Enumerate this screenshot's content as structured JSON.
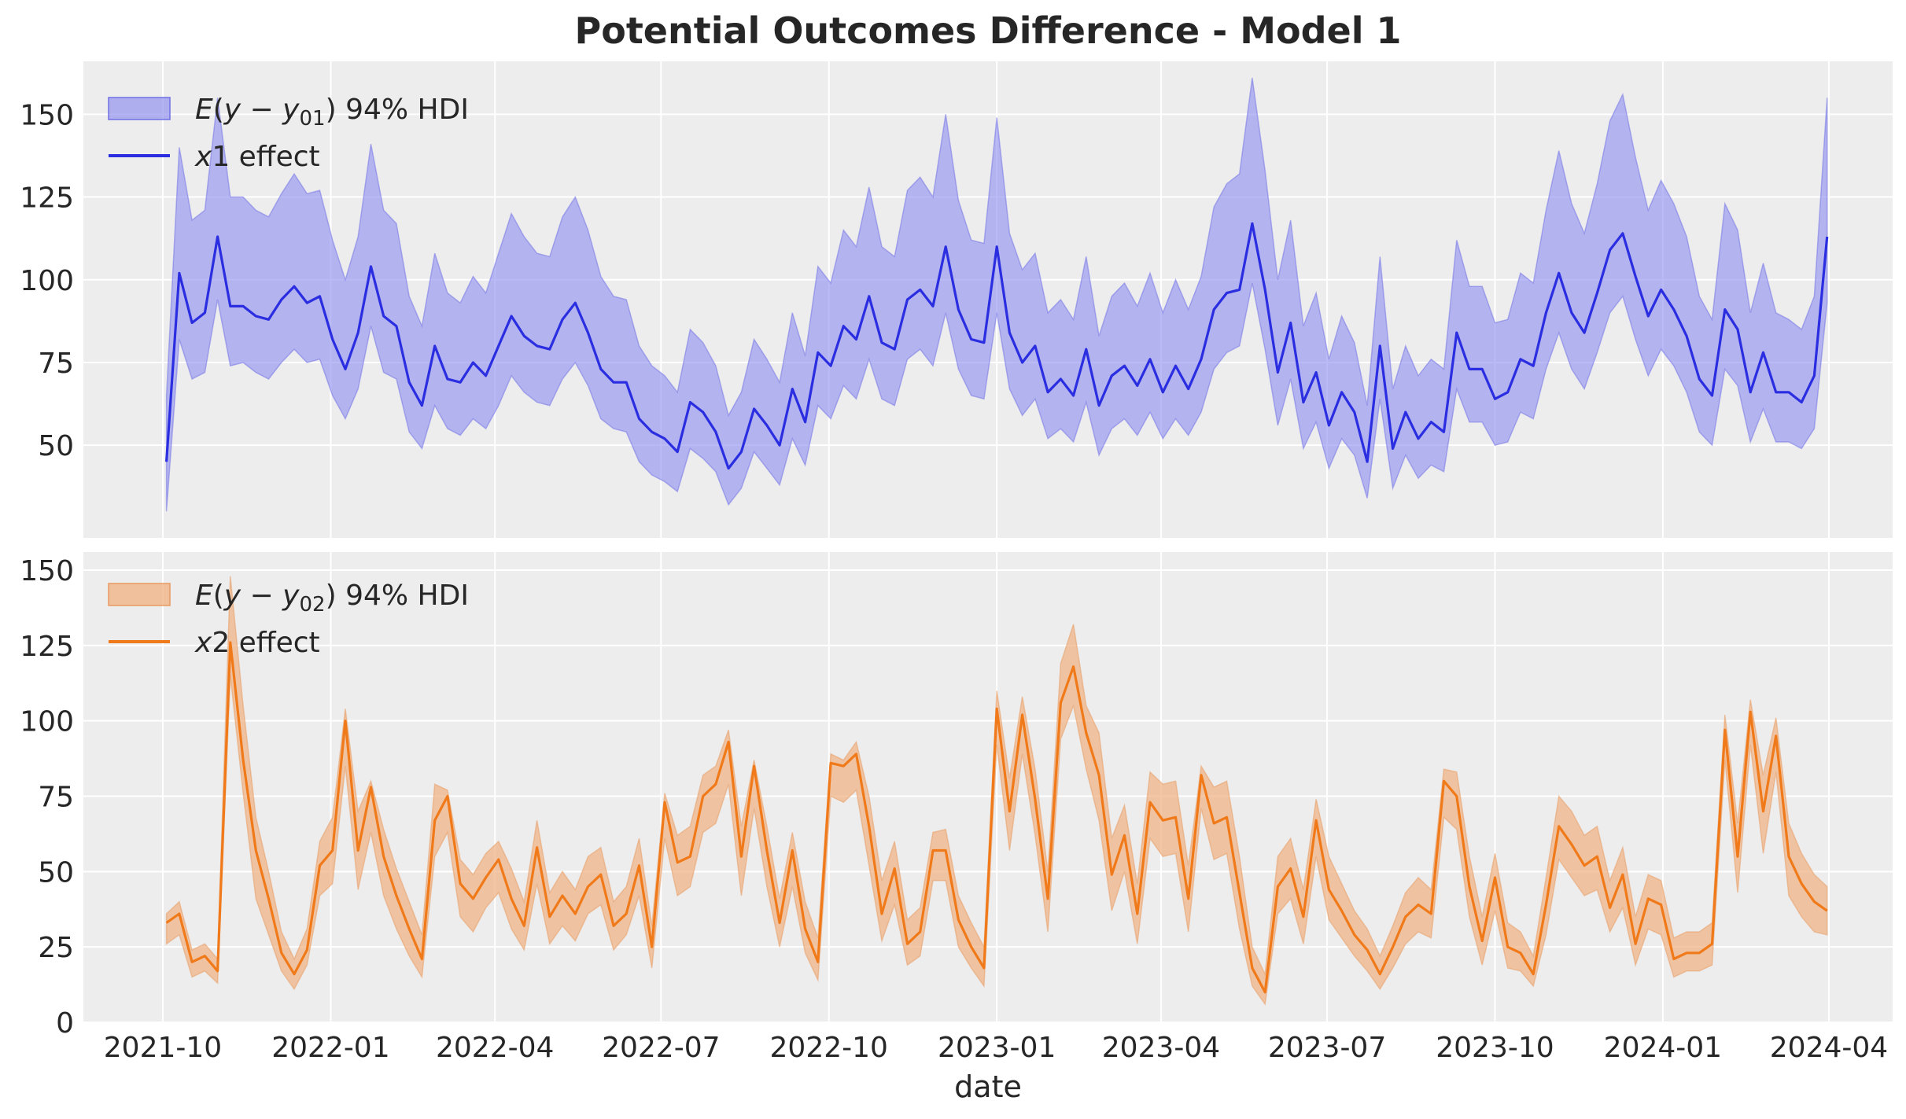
{
  "figure": {
    "title": "Potential Outcomes Difference - Model 1"
  },
  "chart_data": [
    {
      "type": "area",
      "title": "Potential Outcomes Difference - Model 1",
      "xlabel": "",
      "ylabel": "",
      "ylim": [
        22,
        166
      ],
      "yticks": [
        50,
        75,
        100,
        125,
        150
      ],
      "grid": true,
      "legend_position": "top-left",
      "colors": {
        "line": "#2a2ee0",
        "band": "#8c8cf0",
        "band_edge": "#7070e6"
      },
      "x": [
        "2021-10-03",
        "2021-10-10",
        "2021-10-17",
        "2021-10-24",
        "2021-10-31",
        "2021-11-07",
        "2021-11-14",
        "2021-11-21",
        "2021-11-28",
        "2021-12-05",
        "2021-12-12",
        "2021-12-19",
        "2021-12-26",
        "2022-01-02",
        "2022-01-09",
        "2022-01-16",
        "2022-01-23",
        "2022-01-30",
        "2022-02-06",
        "2022-02-13",
        "2022-02-20",
        "2022-02-27",
        "2022-03-06",
        "2022-03-13",
        "2022-03-20",
        "2022-03-27",
        "2022-04-03",
        "2022-04-10",
        "2022-04-17",
        "2022-04-24",
        "2022-05-01",
        "2022-05-08",
        "2022-05-15",
        "2022-05-22",
        "2022-05-29",
        "2022-06-05",
        "2022-06-12",
        "2022-06-19",
        "2022-06-26",
        "2022-07-03",
        "2022-07-10",
        "2022-07-17",
        "2022-07-24",
        "2022-07-31",
        "2022-08-07",
        "2022-08-14",
        "2022-08-21",
        "2022-08-28",
        "2022-09-04",
        "2022-09-11",
        "2022-09-18",
        "2022-09-25",
        "2022-10-02",
        "2022-10-09",
        "2022-10-16",
        "2022-10-23",
        "2022-10-30",
        "2022-11-06",
        "2022-11-13",
        "2022-11-20",
        "2022-11-27",
        "2022-12-04",
        "2022-12-11",
        "2022-12-18",
        "2022-12-25",
        "2023-01-01",
        "2023-01-08",
        "2023-01-15",
        "2023-01-22",
        "2023-01-29",
        "2023-02-05",
        "2023-02-12",
        "2023-02-19",
        "2023-02-26",
        "2023-03-05",
        "2023-03-12",
        "2023-03-19",
        "2023-03-26",
        "2023-04-02",
        "2023-04-09",
        "2023-04-16",
        "2023-04-23",
        "2023-04-30",
        "2023-05-07",
        "2023-05-14",
        "2023-05-21",
        "2023-05-28",
        "2023-06-04",
        "2023-06-11",
        "2023-06-18",
        "2023-06-25",
        "2023-07-02",
        "2023-07-09",
        "2023-07-16",
        "2023-07-23",
        "2023-07-30",
        "2023-08-06",
        "2023-08-13",
        "2023-08-20",
        "2023-08-27",
        "2023-09-03",
        "2023-09-10",
        "2023-09-17",
        "2023-09-24",
        "2023-10-01",
        "2023-10-08",
        "2023-10-15",
        "2023-10-22",
        "2023-10-29",
        "2023-11-05",
        "2023-11-12",
        "2023-11-19",
        "2023-11-26",
        "2023-12-03",
        "2023-12-10",
        "2023-12-17",
        "2023-12-24",
        "2023-12-31",
        "2024-01-07",
        "2024-01-14",
        "2024-01-21",
        "2024-01-28",
        "2024-02-04",
        "2024-02-11",
        "2024-02-18",
        "2024-02-25",
        "2024-03-03",
        "2024-03-10",
        "2024-03-17",
        "2024-03-24",
        "2024-03-31"
      ],
      "series": [
        {
          "name": "x1 effect",
          "values": [
            45,
            102,
            87,
            90,
            113,
            92,
            92,
            89,
            88,
            94,
            98,
            93,
            95,
            82,
            73,
            84,
            104,
            89,
            86,
            69,
            62,
            80,
            70,
            69,
            75,
            71,
            80,
            89,
            83,
            80,
            79,
            88,
            93,
            84,
            73,
            69,
            69,
            58,
            54,
            52,
            48,
            63,
            60,
            54,
            43,
            48,
            61,
            56,
            50,
            67,
            57,
            78,
            74,
            86,
            82,
            95,
            81,
            79,
            94,
            97,
            92,
            110,
            91,
            82,
            81,
            110,
            84,
            75,
            80,
            66,
            70,
            65,
            79,
            62,
            71,
            74,
            68,
            76,
            66,
            74,
            67,
            76,
            91,
            96,
            97,
            117,
            97,
            72,
            87,
            63,
            72,
            56,
            66,
            60,
            45,
            80,
            49,
            60,
            52,
            57,
            54,
            84,
            73,
            73,
            64,
            66,
            76,
            74,
            90,
            102,
            90,
            84,
            96,
            109,
            114,
            101,
            89,
            97,
            91,
            83,
            70,
            65,
            91,
            85,
            66,
            78,
            66,
            66,
            63,
            71,
            113
          ]
        },
        {
          "name": "E(y - y01) 94% HDI lower",
          "values": [
            30,
            82,
            70,
            72,
            94,
            74,
            75,
            72,
            70,
            75,
            79,
            75,
            76,
            65,
            58,
            67,
            86,
            72,
            70,
            54,
            49,
            62,
            55,
            53,
            58,
            55,
            62,
            71,
            66,
            63,
            62,
            70,
            75,
            68,
            58,
            55,
            54,
            45,
            41,
            39,
            36,
            49,
            46,
            42,
            32,
            37,
            48,
            43,
            38,
            52,
            44,
            62,
            58,
            68,
            64,
            76,
            64,
            62,
            76,
            79,
            74,
            90,
            73,
            65,
            64,
            90,
            67,
            59,
            64,
            52,
            55,
            51,
            63,
            47,
            55,
            58,
            53,
            60,
            52,
            58,
            53,
            60,
            73,
            78,
            80,
            99,
            79,
            56,
            70,
            49,
            57,
            43,
            52,
            47,
            34,
            64,
            37,
            47,
            40,
            44,
            42,
            67,
            57,
            57,
            50,
            51,
            60,
            58,
            73,
            84,
            73,
            67,
            78,
            90,
            95,
            82,
            71,
            79,
            74,
            66,
            54,
            50,
            73,
            68,
            51,
            61,
            51,
            51,
            49,
            55,
            93
          ]
        },
        {
          "name": "E(y - y01) 94% HDI upper",
          "values": [
            65,
            140,
            118,
            121,
            155,
            125,
            125,
            121,
            119,
            126,
            132,
            126,
            127,
            112,
            100,
            113,
            141,
            121,
            117,
            95,
            86,
            108,
            96,
            93,
            101,
            96,
            108,
            120,
            113,
            108,
            107,
            119,
            125,
            115,
            101,
            95,
            94,
            80,
            74,
            71,
            66,
            85,
            81,
            74,
            59,
            66,
            82,
            76,
            69,
            90,
            77,
            104,
            99,
            115,
            110,
            128,
            110,
            107,
            127,
            131,
            125,
            150,
            124,
            112,
            111,
            149,
            114,
            103,
            108,
            90,
            94,
            88,
            107,
            83,
            95,
            99,
            92,
            102,
            90,
            100,
            91,
            101,
            122,
            129,
            132,
            161,
            133,
            100,
            118,
            86,
            96,
            76,
            89,
            81,
            62,
            107,
            67,
            80,
            71,
            76,
            73,
            112,
            98,
            98,
            87,
            88,
            102,
            99,
            121,
            139,
            123,
            114,
            129,
            148,
            156,
            137,
            121,
            130,
            123,
            113,
            95,
            88,
            123,
            115,
            90,
            105,
            90,
            88,
            85,
            95,
            155
          ]
        }
      ]
    },
    {
      "type": "area",
      "xlabel": "date",
      "ylabel": "",
      "ylim": [
        0,
        156
      ],
      "yticks": [
        0,
        25,
        50,
        75,
        100,
        125,
        150
      ],
      "xticks": [
        "2021-10",
        "2022-01",
        "2022-04",
        "2022-07",
        "2022-10",
        "2023-01",
        "2023-04",
        "2023-07",
        "2023-10",
        "2024-01",
        "2024-04"
      ],
      "grid": true,
      "legend_position": "top-left",
      "colors": {
        "line": "#f07a1a",
        "band": "#f0b080",
        "band_edge": "#e89a60"
      },
      "series": [
        {
          "name": "x2 effect",
          "values": [
            33,
            36,
            20,
            22,
            17,
            126,
            87,
            57,
            41,
            23,
            16,
            24,
            52,
            57,
            100,
            57,
            78,
            55,
            42,
            31,
            21,
            67,
            75,
            46,
            41,
            48,
            54,
            41,
            32,
            58,
            35,
            42,
            36,
            45,
            49,
            32,
            36,
            52,
            25,
            73,
            53,
            55,
            75,
            79,
            93,
            55,
            85,
            57,
            33,
            57,
            31,
            20,
            86,
            85,
            89,
            65,
            36,
            51,
            26,
            30,
            57,
            57,
            34,
            25,
            18,
            104,
            70,
            102,
            74,
            41,
            106,
            118,
            96,
            82,
            49,
            62,
            36,
            73,
            67,
            68,
            41,
            82,
            66,
            68,
            43,
            18,
            10,
            45,
            51,
            35,
            67,
            44,
            37,
            29,
            24,
            16,
            25,
            35,
            39,
            36,
            80,
            75,
            45,
            27,
            48,
            25,
            23,
            16,
            39,
            65,
            59,
            52,
            55,
            38,
            49,
            26,
            41,
            39,
            21,
            23,
            23,
            26,
            97,
            55,
            103,
            70,
            95,
            55,
            46,
            40,
            37
          ]
        },
        {
          "name": "E(y - y02) 94% HDI lower",
          "values": [
            26,
            29,
            15,
            17,
            13,
            115,
            76,
            41,
            29,
            17,
            11,
            19,
            42,
            46,
            85,
            44,
            63,
            42,
            31,
            22,
            15,
            55,
            63,
            35,
            30,
            38,
            43,
            31,
            24,
            46,
            26,
            32,
            27,
            36,
            39,
            24,
            29,
            42,
            18,
            61,
            42,
            45,
            63,
            66,
            79,
            42,
            71,
            45,
            25,
            45,
            23,
            14,
            75,
            73,
            77,
            52,
            27,
            39,
            19,
            22,
            47,
            47,
            25,
            18,
            12,
            92,
            57,
            89,
            62,
            30,
            94,
            105,
            84,
            67,
            37,
            50,
            26,
            61,
            55,
            56,
            30,
            71,
            54,
            56,
            31,
            12,
            6,
            36,
            41,
            26,
            55,
            34,
            28,
            22,
            17,
            11,
            18,
            26,
            30,
            28,
            68,
            64,
            35,
            19,
            37,
            18,
            17,
            12,
            29,
            54,
            48,
            42,
            44,
            30,
            38,
            19,
            31,
            29,
            15,
            17,
            17,
            19,
            87,
            43,
            92,
            56,
            83,
            42,
            35,
            30,
            29
          ]
        },
        {
          "name": "E(y - y02) 94% HDI upper",
          "values": [
            36,
            40,
            24,
            26,
            21,
            148,
            105,
            68,
            50,
            30,
            21,
            31,
            60,
            68,
            104,
            70,
            80,
            64,
            51,
            40,
            29,
            79,
            77,
            54,
            49,
            56,
            60,
            51,
            40,
            67,
            43,
            50,
            44,
            55,
            58,
            40,
            45,
            61,
            32,
            76,
            62,
            65,
            82,
            85,
            97,
            65,
            87,
            65,
            41,
            63,
            40,
            28,
            89,
            87,
            93,
            75,
            47,
            60,
            34,
            38,
            63,
            64,
            42,
            33,
            25,
            110,
            81,
            108,
            84,
            50,
            119,
            132,
            105,
            96,
            61,
            72,
            46,
            83,
            79,
            80,
            52,
            85,
            78,
            80,
            55,
            25,
            16,
            55,
            61,
            44,
            74,
            55,
            46,
            37,
            31,
            22,
            32,
            43,
            48,
            44,
            84,
            83,
            55,
            35,
            56,
            33,
            30,
            22,
            48,
            75,
            70,
            62,
            65,
            47,
            58,
            35,
            49,
            47,
            28,
            30,
            30,
            33,
            102,
            66,
            107,
            82,
            101,
            66,
            56,
            49,
            45
          ]
        }
      ]
    }
  ],
  "legend": {
    "panel1": {
      "band_label": "94% HDI",
      "line_italic": "x",
      "line_rest": "1 effect"
    },
    "panel2": {
      "band_label": "94% HDI",
      "line_italic": "x",
      "line_rest": "2 effect"
    }
  }
}
